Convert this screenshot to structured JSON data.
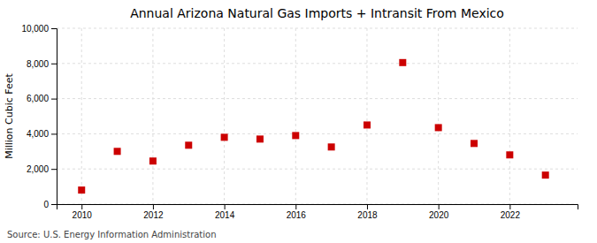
{
  "chart_data": {
    "type": "scatter",
    "title": "Annual Arizona Natural Gas Imports + Intransit From Mexico",
    "ylabel": "Million Cubic Feet",
    "annotations": [
      "Source: U.S. Energy Information Administration"
    ],
    "x": [
      2010,
      2011,
      2012,
      2013,
      2014,
      2015,
      2016,
      2017,
      2018,
      2019,
      2020,
      2021,
      2022,
      2023
    ],
    "values": [
      800,
      3000,
      2450,
      3350,
      3800,
      3700,
      3900,
      3250,
      4500,
      8050,
      4350,
      3450,
      2800,
      1650
    ],
    "color": "#cc0000",
    "marker": "square",
    "xlim": [
      2009.3,
      2023.9
    ],
    "xticks": [
      2010,
      2012,
      2014,
      2016,
      2018,
      2020,
      2022
    ],
    "ylim": [
      0,
      10000
    ],
    "yticks": [
      0,
      {
        "value": 2000,
        "label": "2,000"
      },
      {
        "value": 4000,
        "label": "4,000"
      },
      {
        "value": 6000,
        "label": "6,000"
      },
      {
        "value": 8000,
        "label": "8,000"
      },
      {
        "value": 10000,
        "label": "10,000"
      }
    ],
    "grid": true
  }
}
